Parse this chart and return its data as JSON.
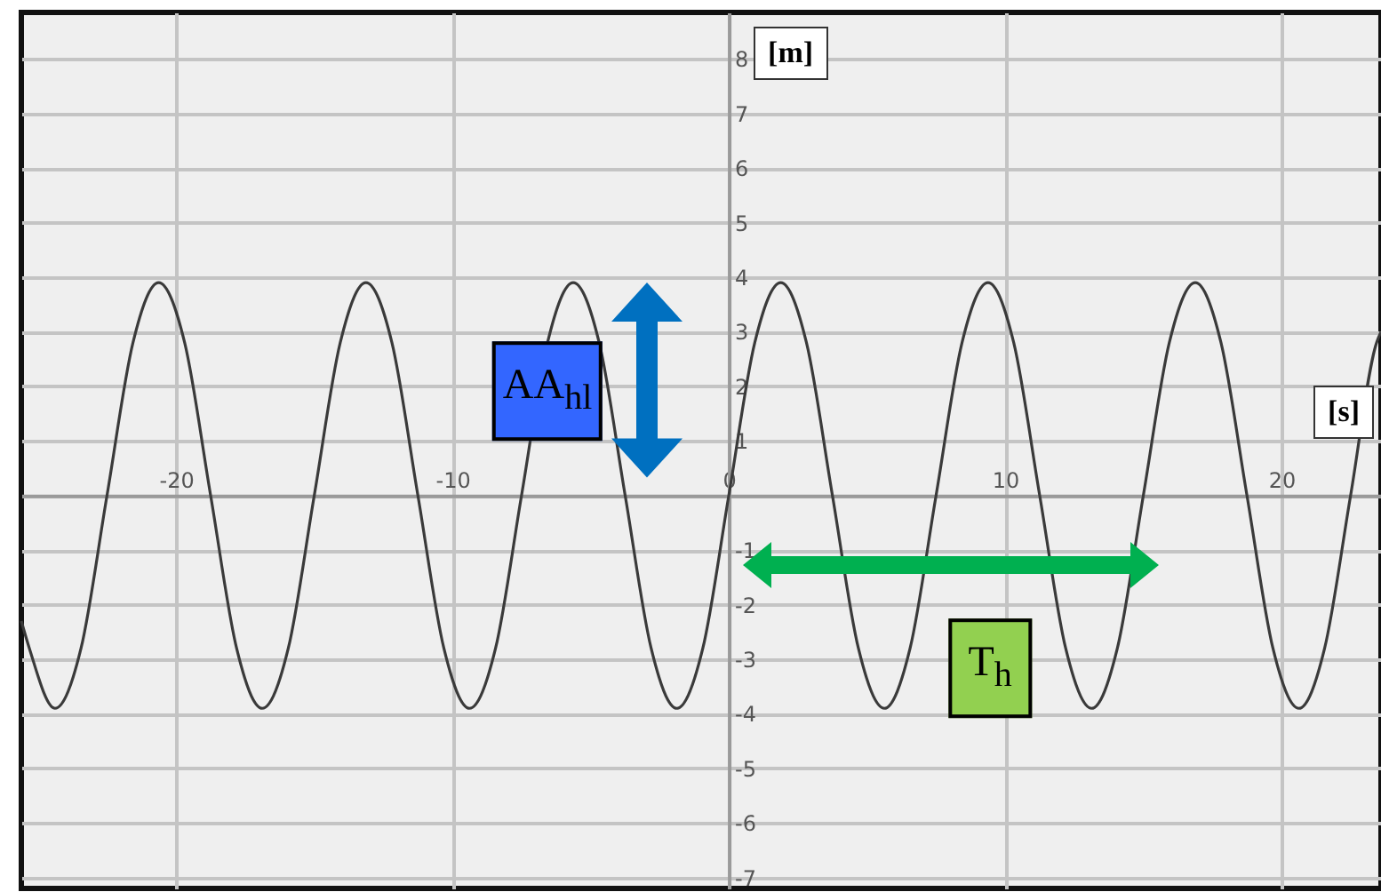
{
  "chart_data": {
    "type": "line",
    "xlabel": "[s]",
    "ylabel": "[m]",
    "x": [
      -25.6,
      -25.31,
      -24.38,
      -23.44,
      -22.5,
      -21.56,
      -20.63,
      -19.69,
      -18.75,
      -17.81,
      -16.88,
      -15.94,
      -15,
      -14.06,
      -13.13,
      -12.19,
      -11.25,
      -10.31,
      -9.38,
      -8.44,
      -7.5,
      -6.56,
      -5.63,
      -4.69,
      -3.75,
      -2.81,
      -1.88,
      -0.94,
      0,
      0.94,
      1.88,
      2.81,
      3.75,
      4.69,
      5.63,
      6.56,
      7.5,
      8.44,
      9.38,
      10.31,
      11.25,
      12.19,
      13.13,
      14.06,
      15,
      15.94,
      16.88,
      17.81,
      18.75,
      19.69,
      20.63,
      21.56,
      22.5,
      23.44,
      23.6
    ],
    "series": [
      {
        "color": "#3a3a3a",
        "values": [
          -2.3,
          -2.8,
          -3.9,
          -2.8,
          0,
          2.8,
          3.9,
          2.8,
          0,
          -2.8,
          -3.9,
          -2.8,
          0,
          2.8,
          3.9,
          2.8,
          0,
          -2.8,
          -3.9,
          -2.8,
          0,
          2.8,
          3.9,
          2.8,
          0,
          -2.8,
          -3.9,
          -2.8,
          0,
          2.8,
          3.9,
          2.8,
          0,
          -2.8,
          -3.9,
          -2.8,
          0,
          2.8,
          3.9,
          2.8,
          0,
          -2.8,
          -3.9,
          -2.8,
          0,
          2.8,
          3.9,
          2.8,
          0,
          -2.8,
          -3.9,
          -2.8,
          0,
          2.8,
          3.0
        ]
      }
    ],
    "xlim": [
      -25.6,
      23.6
    ],
    "ylim": [
      -7.2,
      8.85
    ],
    "xticks": [
      -20,
      -10,
      0,
      10,
      20
    ],
    "yticks": [
      -7,
      -6,
      -5,
      -4,
      -3,
      -2,
      -1,
      {
        "value": 0,
        "label": null
      },
      1,
      2,
      3,
      4,
      5,
      6,
      7,
      8
    ],
    "grid": true,
    "marker": "none",
    "line_style": "solid",
    "annotations": [
      "AA$_{hl}$",
      "T$_{h}$"
    ]
  }
}
